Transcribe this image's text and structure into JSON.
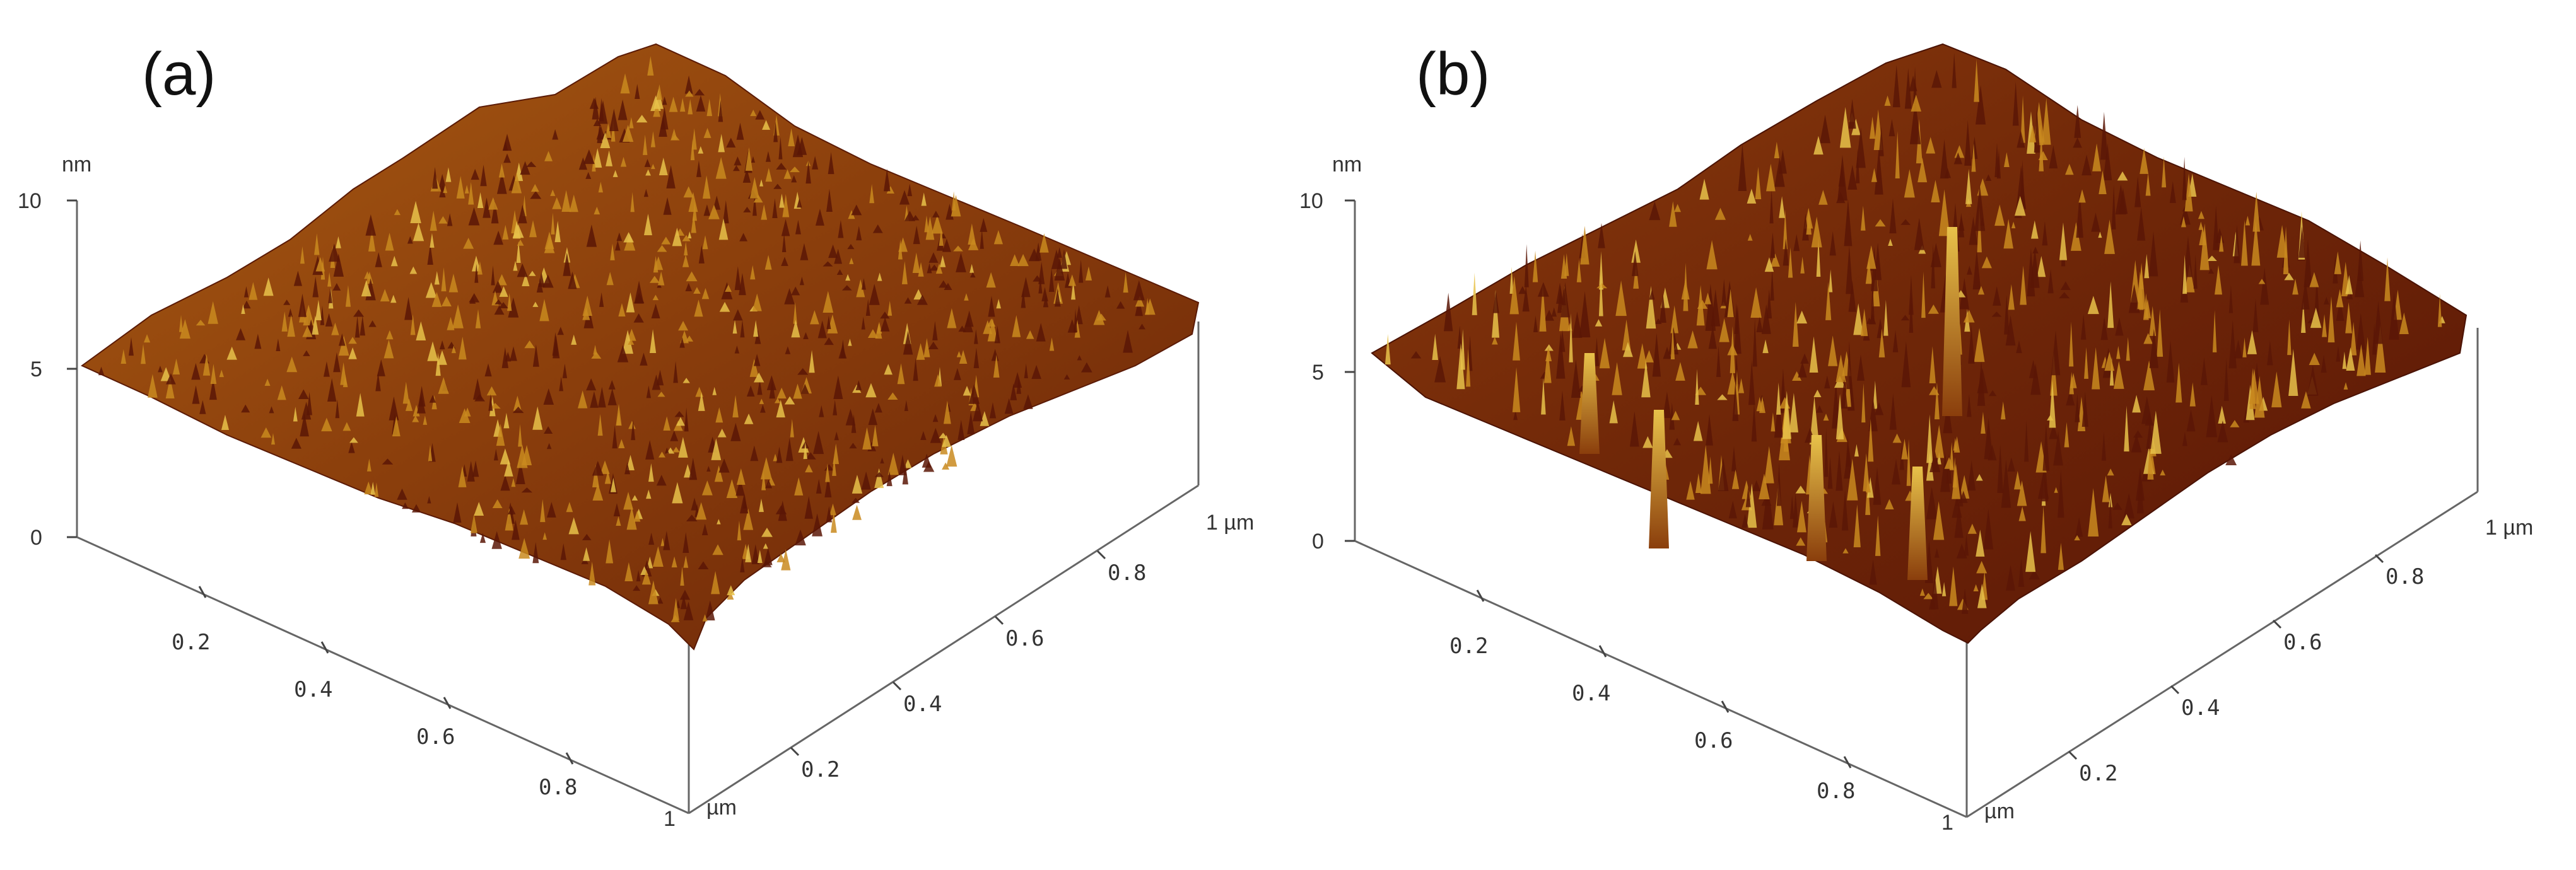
{
  "figure": {
    "panels": [
      {
        "label": "(a)",
        "z_unit": "nm",
        "z_ticks": [
          "10",
          "5",
          "0"
        ],
        "near_corner_label": "1",
        "near_corner_unit": "µm",
        "left_axis_ticks": [
          "0.2",
          "0.4",
          "0.6",
          "0.8"
        ],
        "right_axis_ticks": [
          "0.2",
          "0.4",
          "0.6",
          "0.8"
        ],
        "right_end_label": "1 µm"
      },
      {
        "label": "(b)",
        "z_unit": "nm",
        "z_ticks": [
          "10",
          "5",
          "0"
        ],
        "near_corner_label": "1",
        "near_corner_unit": "µm",
        "left_axis_ticks": [
          "0.2",
          "0.4",
          "0.6",
          "0.8"
        ],
        "right_axis_ticks": [
          "0.2",
          "0.4",
          "0.6",
          "0.8"
        ],
        "right_end_label": "1 µm"
      }
    ],
    "colors": {
      "surface_dark": "#5a1606",
      "surface_mid": "#9a4a0e",
      "surface_light": "#c98a1e",
      "peak_highlight": "#e8c24a",
      "background": "#ffffff"
    }
  }
}
